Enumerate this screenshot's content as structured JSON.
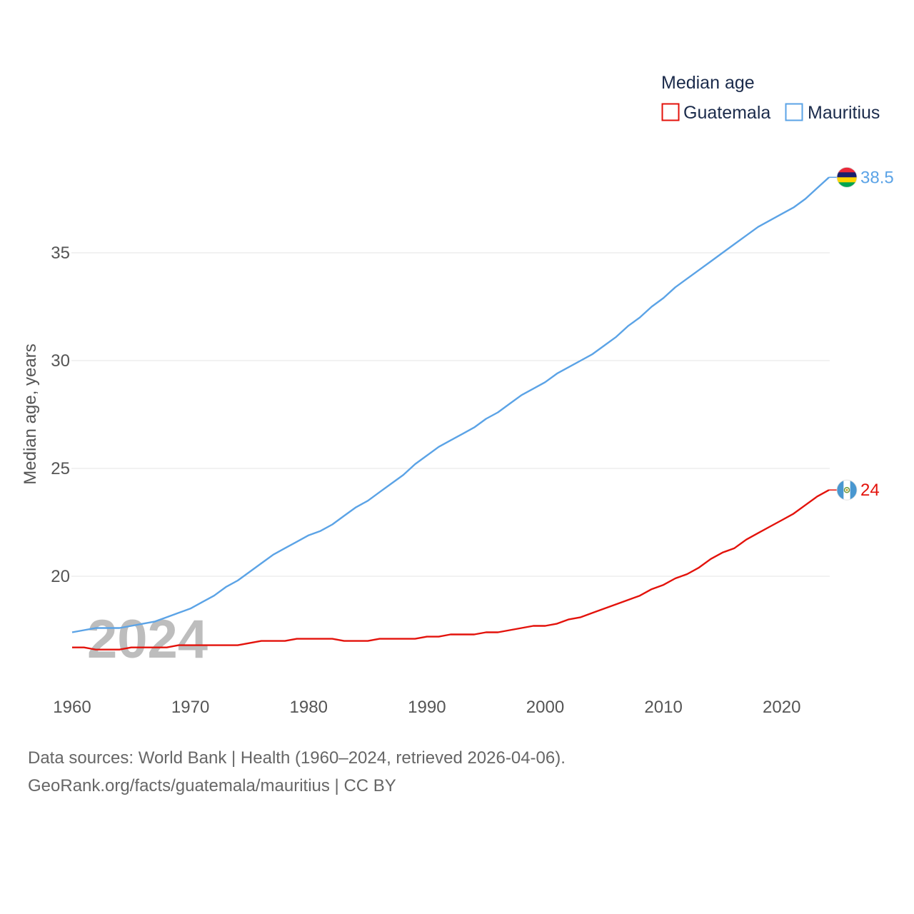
{
  "chart_data": {
    "type": "line",
    "title": "Median age",
    "xlabel": "",
    "ylabel": "Median age, years",
    "xlim": [
      1960,
      2024
    ],
    "ylim": [
      15.5,
      40
    ],
    "x_ticks": [
      1960,
      1970,
      1980,
      1990,
      2000,
      2010,
      2020
    ],
    "y_ticks": [
      20,
      25,
      30,
      35
    ],
    "grid": true,
    "legend_position": "top-right",
    "watermark_year": "2024",
    "x": [
      1960,
      1961,
      1962,
      1963,
      1964,
      1965,
      1966,
      1967,
      1968,
      1969,
      1970,
      1971,
      1972,
      1973,
      1974,
      1975,
      1976,
      1977,
      1978,
      1979,
      1980,
      1981,
      1982,
      1983,
      1984,
      1985,
      1986,
      1987,
      1988,
      1989,
      1990,
      1991,
      1992,
      1993,
      1994,
      1995,
      1996,
      1997,
      1998,
      1999,
      2000,
      2001,
      2002,
      2003,
      2004,
      2005,
      2006,
      2007,
      2008,
      2009,
      2010,
      2011,
      2012,
      2013,
      2014,
      2015,
      2016,
      2017,
      2018,
      2019,
      2020,
      2021,
      2022,
      2023,
      2024
    ],
    "series": [
      {
        "name": "Guatemala",
        "color": "#e3120b",
        "end_label": "24",
        "flag": "guatemala-flag-icon",
        "values": [
          16.7,
          16.7,
          16.6,
          16.6,
          16.6,
          16.7,
          16.7,
          16.7,
          16.7,
          16.8,
          16.8,
          16.8,
          16.8,
          16.8,
          16.8,
          16.9,
          17.0,
          17.0,
          17.0,
          17.1,
          17.1,
          17.1,
          17.1,
          17.0,
          17.0,
          17.0,
          17.1,
          17.1,
          17.1,
          17.1,
          17.2,
          17.2,
          17.3,
          17.3,
          17.3,
          17.4,
          17.4,
          17.5,
          17.6,
          17.7,
          17.7,
          17.8,
          18.0,
          18.1,
          18.3,
          18.5,
          18.7,
          18.9,
          19.1,
          19.4,
          19.6,
          19.9,
          20.1,
          20.4,
          20.8,
          21.1,
          21.3,
          21.7,
          22.0,
          22.3,
          22.6,
          22.9,
          23.3,
          23.7,
          24.0
        ]
      },
      {
        "name": "Mauritius",
        "color": "#5ba3e6",
        "end_label": "38.5",
        "flag": "mauritius-flag-icon",
        "values": [
          17.4,
          17.5,
          17.6,
          17.6,
          17.6,
          17.7,
          17.8,
          17.9,
          18.1,
          18.3,
          18.5,
          18.8,
          19.1,
          19.5,
          19.8,
          20.2,
          20.6,
          21.0,
          21.3,
          21.6,
          21.9,
          22.1,
          22.4,
          22.8,
          23.2,
          23.5,
          23.9,
          24.3,
          24.7,
          25.2,
          25.6,
          26.0,
          26.3,
          26.6,
          26.9,
          27.3,
          27.6,
          28.0,
          28.4,
          28.7,
          29.0,
          29.4,
          29.7,
          30.0,
          30.3,
          30.7,
          31.1,
          31.6,
          32.0,
          32.5,
          32.9,
          33.4,
          33.8,
          34.2,
          34.6,
          35.0,
          35.4,
          35.8,
          36.2,
          36.5,
          36.8,
          37.1,
          37.5,
          38.0,
          38.5
        ]
      }
    ]
  },
  "source": {
    "line1": "Data sources: World Bank | Health (1960–2024, retrieved 2026-04-06).",
    "line2": "GeoRank.org/facts/guatemala/mauritius | CC BY"
  }
}
